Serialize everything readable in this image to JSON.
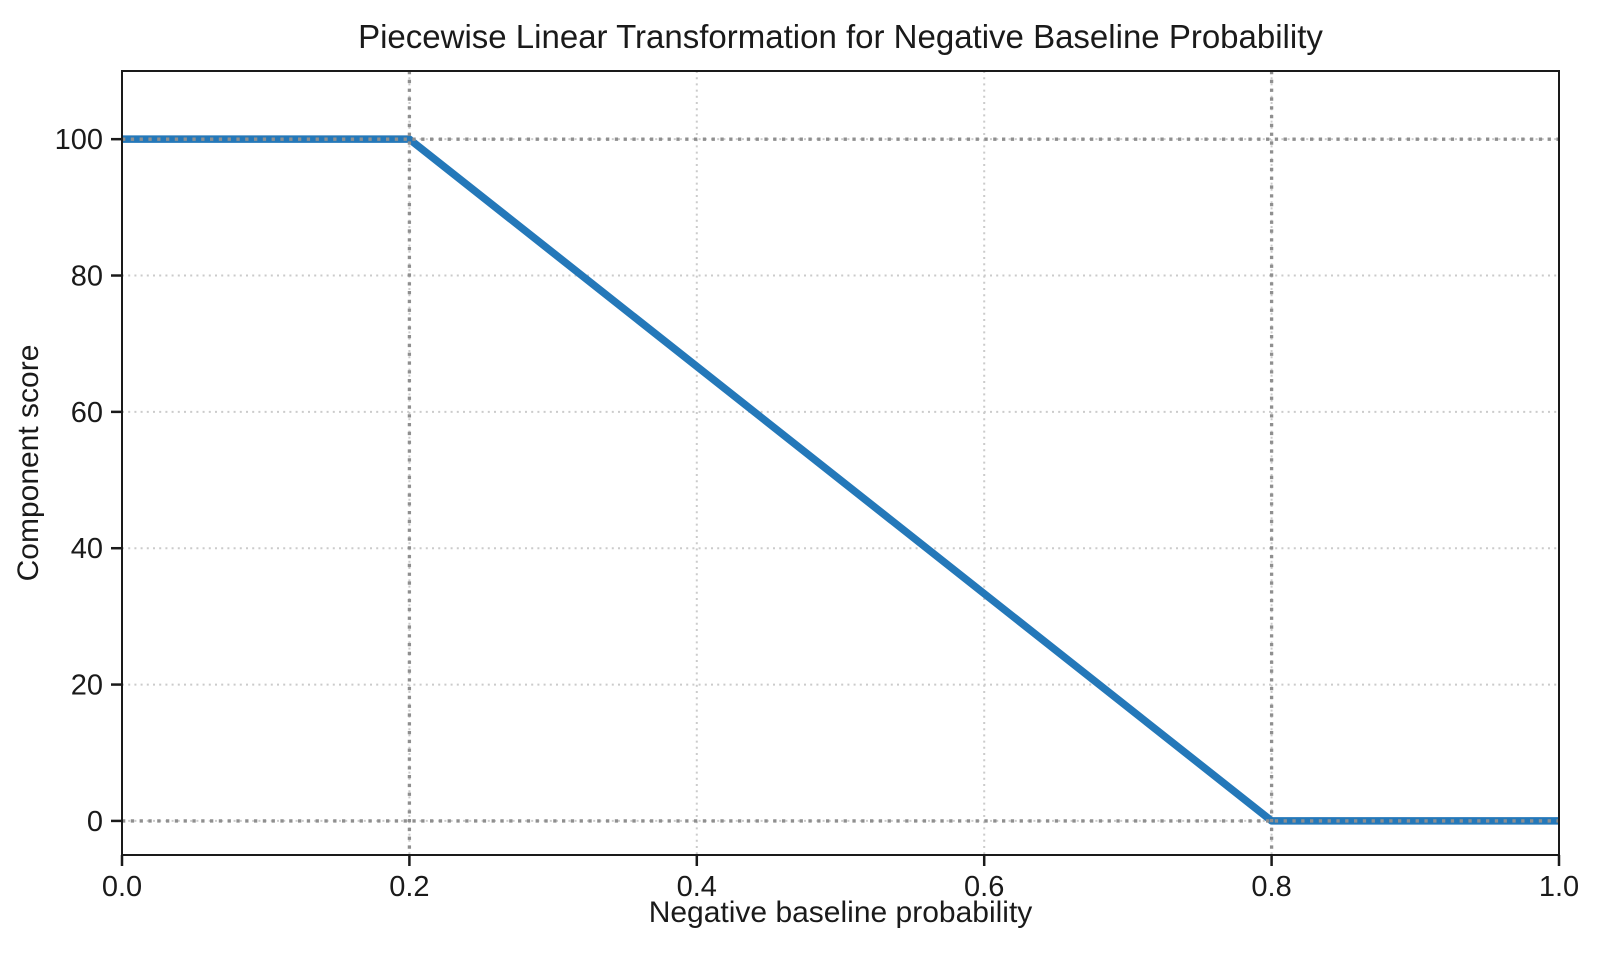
{
  "figure": {
    "background": "#ffffff",
    "text_color": "#1a1a1a"
  },
  "chart_data": {
    "type": "line",
    "title": "Piecewise Linear Transformation for Negative Baseline Probability",
    "xlabel": "Negative baseline probability",
    "ylabel": "Component score",
    "xlim": [
      0.0,
      1.0
    ],
    "ylim": [
      -5,
      110
    ],
    "xticks": [
      0.0,
      0.2,
      0.4,
      0.6,
      0.8,
      1.0
    ],
    "xtick_labels": [
      "0.0",
      "0.2",
      "0.4",
      "0.6",
      "0.8",
      "1.0"
    ],
    "yticks": [
      0,
      20,
      40,
      60,
      80,
      100
    ],
    "ytick_labels": [
      "0",
      "20",
      "40",
      "60",
      "80",
      "100"
    ],
    "grid": {
      "visible": true,
      "style": "dotted",
      "color": "#cbcbcb"
    },
    "reference_lines": {
      "style": "dotted",
      "color": "#8f8f8f",
      "x": [
        0.2,
        0.8
      ],
      "y": [
        0,
        100
      ]
    },
    "series": [
      {
        "name": "component score",
        "color": "#2478b9",
        "linewidth": 7.5,
        "points": [
          [
            0.0,
            100
          ],
          [
            0.2,
            100
          ],
          [
            0.8,
            0
          ],
          [
            1.0,
            0
          ]
        ]
      }
    ]
  }
}
